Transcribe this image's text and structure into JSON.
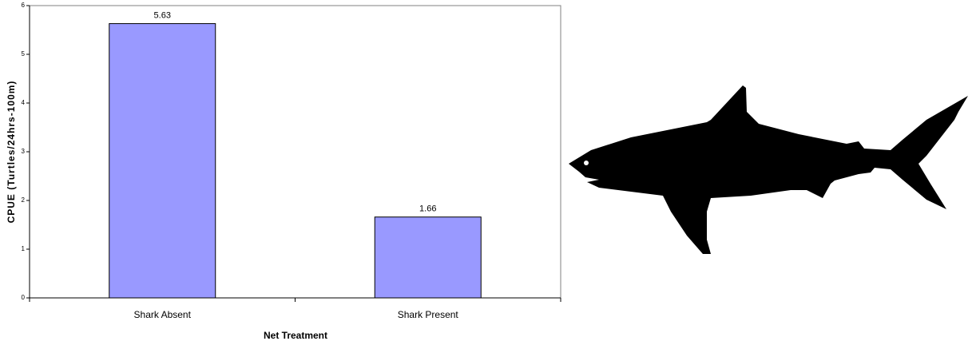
{
  "chart_data": {
    "type": "bar",
    "x_label": "Net Treatment",
    "y_label": "CPUE (Turtles/24hrs-100m)",
    "categories": [
      "Shark Absent",
      "Shark Present"
    ],
    "values": [
      5.63,
      1.66
    ],
    "color": "#9999ff",
    "ylim": [
      0,
      6
    ],
    "yticks": [
      0,
      1,
      2,
      3,
      4,
      5,
      6
    ]
  }
}
